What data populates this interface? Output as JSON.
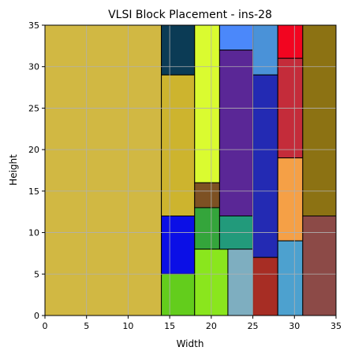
{
  "chart_data": {
    "type": "block-placement",
    "title": "VLSI Block Placement - ins-28",
    "xlabel": "Width",
    "ylabel": "Height",
    "xlim": [
      0,
      35
    ],
    "ylim": [
      0,
      35
    ],
    "xticks": [
      0,
      5,
      10,
      15,
      20,
      25,
      30,
      35
    ],
    "yticks": [
      0,
      5,
      10,
      15,
      20,
      25,
      30,
      35
    ],
    "grid": true,
    "blocks": [
      {
        "x": 0,
        "y": 0,
        "w": 14,
        "h": 35,
        "color": "#d1b843"
      },
      {
        "x": 14,
        "y": 29,
        "w": 4,
        "h": 6,
        "color": "#0b3b55"
      },
      {
        "x": 14,
        "y": 12,
        "w": 4,
        "h": 17,
        "color": "#cdb42e"
      },
      {
        "x": 14,
        "y": 5,
        "w": 4,
        "h": 7,
        "color": "#0b0fe6"
      },
      {
        "x": 14,
        "y": 0,
        "w": 4,
        "h": 5,
        "color": "#63cd1c"
      },
      {
        "x": 18,
        "y": 16,
        "w": 3,
        "h": 19,
        "color": "#dafb30"
      },
      {
        "x": 18,
        "y": 13,
        "w": 3,
        "h": 3,
        "color": "#7d5123"
      },
      {
        "x": 18,
        "y": 8,
        "w": 3,
        "h": 5,
        "color": "#34a53b"
      },
      {
        "x": 18,
        "y": 0,
        "w": 4,
        "h": 8,
        "color": "#8ae61d"
      },
      {
        "x": 21,
        "y": 32,
        "w": 4,
        "h": 3,
        "color": "#4b88fa"
      },
      {
        "x": 21,
        "y": 12,
        "w": 4,
        "h": 20,
        "color": "#5a2796"
      },
      {
        "x": 21,
        "y": 8,
        "w": 4,
        "h": 4,
        "color": "#229a7b"
      },
      {
        "x": 22,
        "y": 0,
        "w": 3,
        "h": 8,
        "color": "#7eaec0"
      },
      {
        "x": 25,
        "y": 29,
        "w": 3,
        "h": 6,
        "color": "#4a92d8"
      },
      {
        "x": 25,
        "y": 7,
        "w": 3,
        "h": 22,
        "color": "#232ab3"
      },
      {
        "x": 25,
        "y": 0,
        "w": 3,
        "h": 7,
        "color": "#a72d24"
      },
      {
        "x": 28,
        "y": 31,
        "w": 3,
        "h": 4,
        "color": "#f20520"
      },
      {
        "x": 28,
        "y": 19,
        "w": 3,
        "h": 12,
        "color": "#c42c3a"
      },
      {
        "x": 28,
        "y": 9,
        "w": 3,
        "h": 10,
        "color": "#f5a046"
      },
      {
        "x": 28,
        "y": 0,
        "w": 3,
        "h": 9,
        "color": "#4da1cf"
      },
      {
        "x": 31,
        "y": 12,
        "w": 4,
        "h": 23,
        "color": "#8c7213"
      },
      {
        "x": 31,
        "y": 0,
        "w": 4,
        "h": 12,
        "color": "#8c4a47"
      }
    ]
  }
}
